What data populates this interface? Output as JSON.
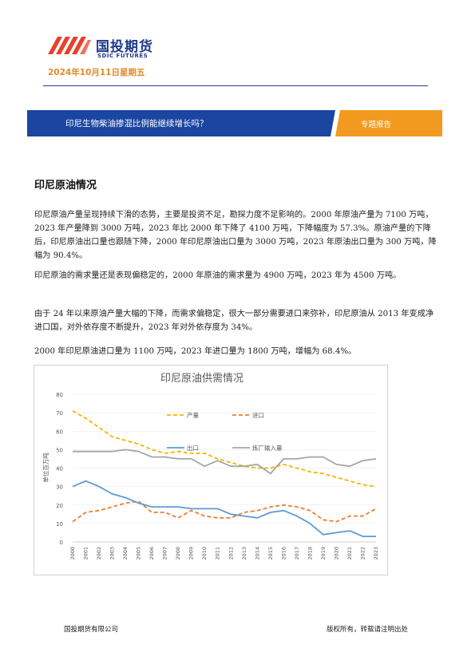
{
  "header": {
    "company_cn": "国投期货",
    "company_en": "SDIC FUTURES",
    "date": "2024年10月11日星期五"
  },
  "banner": {
    "title": "印尼生物柴油掺混比例能继续增长吗？",
    "tag": "专题报告"
  },
  "section": {
    "heading": "印尼原油情况",
    "paragraphs": [
      "印尼原油产量呈现持续下滑的态势，主要是投资不足，勘探力度不足影响的。2000 年原油产量为 7100 万吨，2023 年产量降到 3000 万吨，2023 年比 2000 年下降了 4100 万吨，下降幅度为 57.3%。原油产量的下降后，印尼原油出口量也跟随下降，2000 年印尼原油出口量为 3000 万吨，2023 年原油出口量为 300 万吨，降幅为 90.4%。",
      "印尼原油的需求量还是表现偏稳定的，2000 年原油的需求量为 4900 万吨，2023 年为 4500 万吨。",
      "由于 24 年以来原油产量大幅的下降，而需求偏稳定，很大一部分需要进口来弥补，印尼原油从 2013 年变成净进口国，对外依存度不断提升，2023 年对外依存度为 34%。",
      "2000 年印尼原油进口量为 1100 万吨，2023 年进口量为 1800 万吨，增幅为 68.4%。"
    ]
  },
  "chart_data": {
    "type": "line",
    "title": "印尼原油供需情况",
    "ylabel": "单位百万吨",
    "xlabel": "",
    "ylim": [
      0,
      80
    ],
    "yticks": [
      0,
      10,
      20,
      30,
      40,
      50,
      60,
      70,
      80
    ],
    "x": [
      "2000",
      "2001",
      "2002",
      "2003",
      "2004",
      "2005",
      "2006",
      "2007",
      "2008",
      "2009",
      "2010",
      "2011",
      "2012",
      "2013",
      "2014",
      "2015",
      "2016",
      "2017",
      "2018",
      "2019",
      "2020",
      "2021",
      "2022",
      "2023"
    ],
    "series": [
      {
        "name": "产量",
        "color": "#f2b500",
        "dash": "dash",
        "values": [
          71,
          67,
          62,
          57,
          55,
          53,
          50,
          48,
          49,
          48,
          48,
          45,
          43,
          41,
          40,
          40,
          42,
          40,
          38,
          37,
          35,
          33,
          31,
          30
        ]
      },
      {
        "name": "进口",
        "color": "#ed7d31",
        "dash": "dash",
        "values": [
          11,
          16,
          17,
          19,
          21,
          22,
          16,
          16,
          13,
          17,
          14,
          13,
          13,
          16,
          17,
          19,
          20,
          19,
          17,
          12,
          11,
          14,
          14,
          18
        ]
      },
      {
        "name": "出口",
        "color": "#5b9bd5",
        "dash": "solid",
        "values": [
          30,
          33,
          30,
          26,
          24,
          21,
          19,
          19,
          19,
          18,
          18,
          18,
          15,
          14,
          13,
          16,
          17,
          14,
          10,
          4,
          5,
          6,
          3,
          3
        ]
      },
      {
        "name": "炼厂输入量",
        "color": "#a5a5a5",
        "dash": "solid",
        "values": [
          49,
          49,
          49,
          49,
          50,
          49,
          46,
          46,
          45,
          45,
          41,
          44,
          41,
          41,
          42,
          37,
          45,
          45,
          46,
          46,
          42,
          41,
          44,
          45
        ]
      }
    ]
  },
  "footer": {
    "left": "国投期货有限公司",
    "right": "版权所有，转载请注明出处"
  },
  "colors": {
    "brand_blue": "#1f3a8a",
    "brand_orange": "#f29a1f",
    "banner_blue": "#1a45a0",
    "logo_red": "#e8412c"
  }
}
